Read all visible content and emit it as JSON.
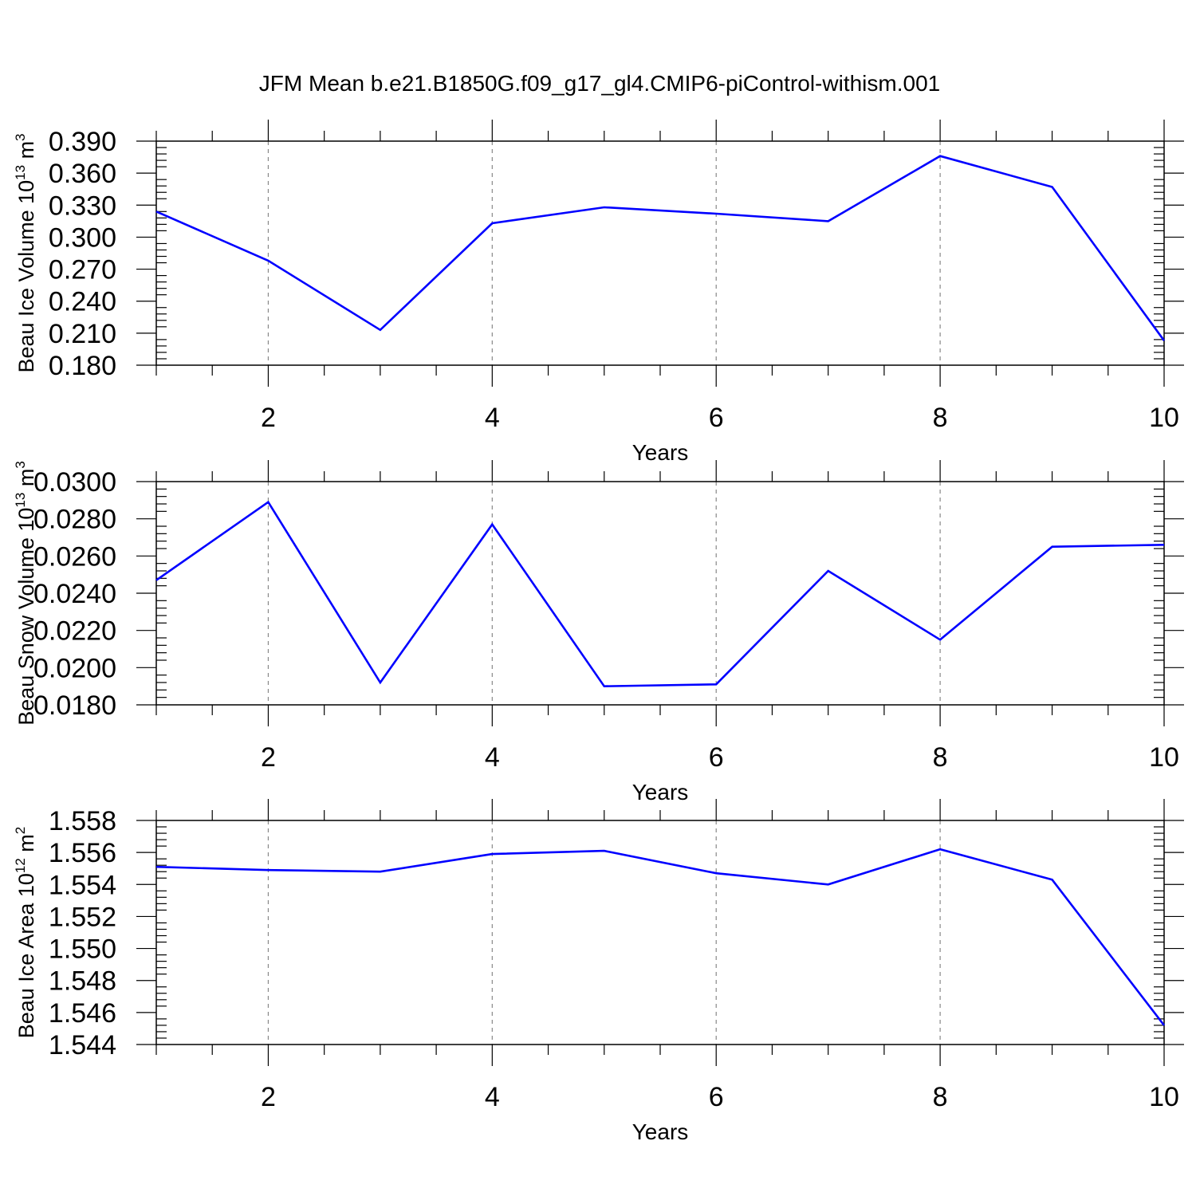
{
  "title": "JFM Mean b.e21.B1850G.f09_g17_gl4.CMIP6-piControl-withism.001",
  "colors": {
    "line": "#0000ff",
    "axis": "#000000",
    "grid": "#888888",
    "background": "#ffffff"
  },
  "chart_data": [
    {
      "type": "line",
      "xlabel": "Years",
      "ylabel": "Beau Ice Volume 10",
      "ylabel_exp": "13",
      "ylabel_unit": " m",
      "ylabel_unit_exp": "3",
      "xlim": [
        1,
        10
      ],
      "ylim": [
        0.18,
        0.39
      ],
      "xticks": [
        2,
        4,
        6,
        8,
        10
      ],
      "yticks": [
        "0.180",
        "0.210",
        "0.240",
        "0.270",
        "0.300",
        "0.330",
        "0.360",
        "0.390"
      ],
      "grid": "vertical dashed at major x ticks",
      "series": [
        {
          "x": [
            1,
            2,
            3,
            4,
            5,
            6,
            7,
            8,
            9,
            10
          ],
          "values": [
            0.324,
            0.278,
            0.213,
            0.313,
            0.328,
            0.322,
            0.315,
            0.376,
            0.347,
            0.203
          ]
        }
      ]
    },
    {
      "type": "line",
      "xlabel": "Years",
      "ylabel": "Beau Snow Volume 10",
      "ylabel_exp": "13",
      "ylabel_unit": " m",
      "ylabel_unit_exp": "3",
      "xlim": [
        1,
        10
      ],
      "ylim": [
        0.018,
        0.03
      ],
      "xticks": [
        2,
        4,
        6,
        8,
        10
      ],
      "yticks": [
        "0.0180",
        "0.0200",
        "0.0220",
        "0.0240",
        "0.0260",
        "0.0280",
        "0.0300"
      ],
      "grid": "vertical dashed at major x ticks",
      "series": [
        {
          "x": [
            1,
            2,
            3,
            4,
            5,
            6,
            7,
            8,
            9,
            10
          ],
          "values": [
            0.0247,
            0.0289,
            0.0192,
            0.0277,
            0.019,
            0.0191,
            0.0252,
            0.0215,
            0.0265,
            0.0266
          ]
        }
      ]
    },
    {
      "type": "line",
      "xlabel": "Years",
      "ylabel": "Beau Ice Area 10",
      "ylabel_exp": "12",
      "ylabel_unit": " m",
      "ylabel_unit_exp": "2",
      "xlim": [
        1,
        10
      ],
      "ylim": [
        1.544,
        1.558
      ],
      "xticks": [
        2,
        4,
        6,
        8,
        10
      ],
      "yticks": [
        "1.544",
        "1.546",
        "1.548",
        "1.550",
        "1.552",
        "1.554",
        "1.556",
        "1.558"
      ],
      "grid": "vertical dashed at major x ticks",
      "series": [
        {
          "x": [
            1,
            2,
            3,
            4,
            5,
            6,
            7,
            8,
            9,
            10
          ],
          "values": [
            1.5551,
            1.5549,
            1.5548,
            1.5559,
            1.5561,
            1.5547,
            1.554,
            1.5562,
            1.5543,
            1.5452
          ]
        }
      ]
    }
  ]
}
